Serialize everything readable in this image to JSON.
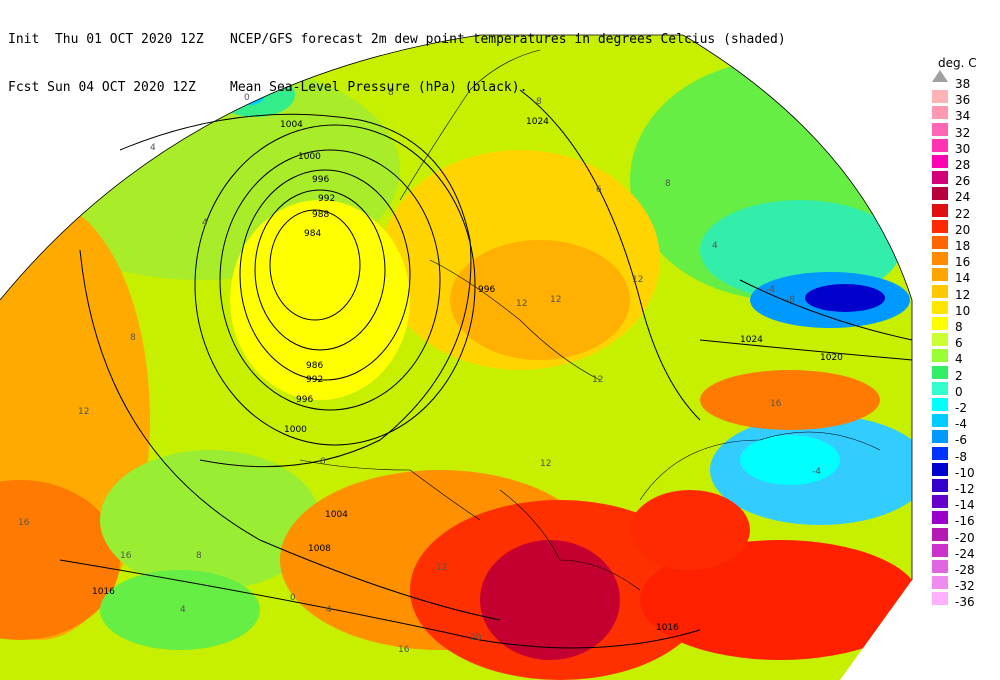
{
  "header": {
    "init_label": "Init  Thu 01 OCT 2020 12Z",
    "fcst_label": "Fcst Sun 04 OCT 2020 12Z",
    "title_line1": "NCEP/GFS forecast 2m dew point temperatures in degrees Celcius (shaded)",
    "title_line2": "Mean Sea-Level Pressure (hPa) (black)."
  },
  "colorbar": {
    "unit": "deg. C",
    "levels": [
      {
        "label": "38",
        "color": "#a0a0a0"
      },
      {
        "label": "36",
        "color": "#ffb3b3"
      },
      {
        "label": "34",
        "color": "#ff99b3"
      },
      {
        "label": "32",
        "color": "#ff66b3"
      },
      {
        "label": "30",
        "color": "#ff33b3"
      },
      {
        "label": "28",
        "color": "#ff00b3"
      },
      {
        "label": "26",
        "color": "#d4007a"
      },
      {
        "label": "24",
        "color": "#b8003d"
      },
      {
        "label": "22",
        "color": "#e01010"
      },
      {
        "label": "20",
        "color": "#ff2a00"
      },
      {
        "label": "18",
        "color": "#ff6600"
      },
      {
        "label": "16",
        "color": "#ff8c00"
      },
      {
        "label": "14",
        "color": "#ffa500"
      },
      {
        "label": "12",
        "color": "#ffc800"
      },
      {
        "label": "10",
        "color": "#ffe600"
      },
      {
        "label": "8",
        "color": "#ffff00"
      },
      {
        "label": "6",
        "color": "#ccff33"
      },
      {
        "label": "4",
        "color": "#99ff33"
      },
      {
        "label": "2",
        "color": "#33ee66"
      },
      {
        "label": "0",
        "color": "#33ffcc"
      },
      {
        "label": "-2",
        "color": "#00ffff"
      },
      {
        "label": "-4",
        "color": "#00ccff"
      },
      {
        "label": "-6",
        "color": "#0099ff"
      },
      {
        "label": "-8",
        "color": "#0033ff"
      },
      {
        "label": "-10",
        "color": "#0000cc"
      },
      {
        "label": "-12",
        "color": "#3300cc"
      },
      {
        "label": "-14",
        "color": "#6600cc"
      },
      {
        "label": "-16",
        "color": "#9900cc"
      },
      {
        "label": "-20",
        "color": "#b31ab3"
      },
      {
        "label": "-24",
        "color": "#cc33cc"
      },
      {
        "label": "-28",
        "color": "#e066e0"
      },
      {
        "label": "-32",
        "color": "#f08cf0"
      },
      {
        "label": "-36",
        "color": "#ffb0ff"
      }
    ]
  },
  "isobar_labels": [
    "1004",
    "1000",
    "996",
    "992",
    "988",
    "984",
    "986",
    "992",
    "996",
    "1000",
    "1004",
    "1008",
    "1016",
    "1016",
    "1024",
    "1024",
    "1020",
    "996"
  ],
  "dewpoint_labels": [
    "0",
    "4",
    "4",
    "8",
    "8",
    "8",
    "12",
    "12",
    "12",
    "12",
    "12",
    "16",
    "16",
    "16",
    "20",
    "-4",
    "-8",
    "-4",
    "8",
    "6",
    "4",
    "12",
    "12",
    "4",
    "0",
    "8",
    "8",
    "4",
    "16"
  ]
}
